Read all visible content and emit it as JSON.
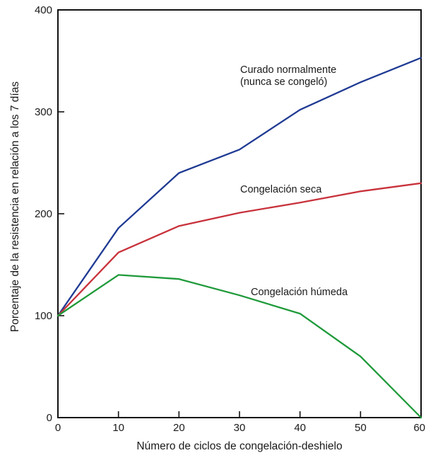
{
  "chart_data": {
    "type": "line",
    "title": "",
    "xlabel": "Número de ciclos de congelación-deshielo",
    "ylabel": "Porcentaje de la resistencia en relación a los 7 días",
    "xlim": [
      0,
      60
    ],
    "ylim": [
      0,
      400
    ],
    "xticks": [
      "0",
      "10",
      "20",
      "30",
      "40",
      "50",
      "60"
    ],
    "yticks": [
      "0",
      "100",
      "200",
      "300",
      "400"
    ],
    "grid": false,
    "legend": "none (series labeled inline)",
    "x": [
      0,
      10,
      20,
      30,
      40,
      50,
      60
    ],
    "series": [
      {
        "name": "Curado normalmente (nunca se congeló)",
        "label_lines": [
          "Curado normalmente",
          "(nunca se congeló)"
        ],
        "color": "#1f3a93",
        "values": [
          100,
          186,
          240,
          263,
          302,
          329,
          353
        ]
      },
      {
        "name": "Congelación seca",
        "label_lines": [
          "Congelación seca"
        ],
        "color": "#c8323c",
        "values": [
          100,
          162,
          188,
          201,
          211,
          222,
          230
        ]
      },
      {
        "name": "Congelación húmeda",
        "label_lines": [
          "Congelación húmeda"
        ],
        "color": "#1f9a3a",
        "values": [
          100,
          140,
          136,
          120,
          102,
          60,
          0
        ]
      }
    ]
  }
}
